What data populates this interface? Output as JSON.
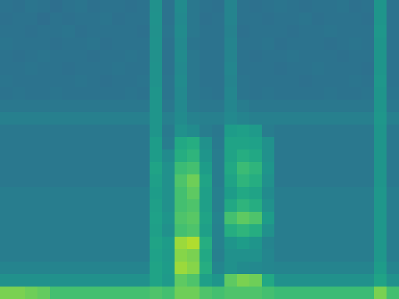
{
  "chart_data": {
    "type": "heatmap",
    "tick_labels": false,
    "zlim": [
      0,
      1
    ],
    "cells": [
      [
        0.38,
        0.37,
        0.39,
        0.38,
        0.36,
        0.38,
        0.39,
        0.37,
        0.38,
        0.38,
        0.37,
        0.38,
        0.5,
        0.38,
        0.48,
        0.4,
        0.38,
        0.37,
        0.45,
        0.38,
        0.37,
        0.38,
        0.39,
        0.38,
        0.37,
        0.38,
        0.38,
        0.39,
        0.37,
        0.38,
        0.52,
        0.38
      ],
      [
        0.37,
        0.38,
        0.38,
        0.36,
        0.38,
        0.37,
        0.38,
        0.38,
        0.39,
        0.37,
        0.38,
        0.38,
        0.51,
        0.38,
        0.47,
        0.4,
        0.37,
        0.38,
        0.45,
        0.38,
        0.38,
        0.37,
        0.38,
        0.38,
        0.39,
        0.37,
        0.38,
        0.38,
        0.38,
        0.37,
        0.52,
        0.38
      ],
      [
        0.38,
        0.38,
        0.37,
        0.38,
        0.38,
        0.39,
        0.37,
        0.38,
        0.38,
        0.38,
        0.38,
        0.37,
        0.5,
        0.39,
        0.48,
        0.4,
        0.38,
        0.38,
        0.44,
        0.37,
        0.38,
        0.38,
        0.38,
        0.37,
        0.38,
        0.38,
        0.39,
        0.38,
        0.38,
        0.38,
        0.53,
        0.38
      ],
      [
        0.39,
        0.38,
        0.38,
        0.38,
        0.37,
        0.38,
        0.38,
        0.39,
        0.37,
        0.38,
        0.38,
        0.38,
        0.51,
        0.38,
        0.47,
        0.39,
        0.38,
        0.38,
        0.45,
        0.38,
        0.38,
        0.39,
        0.37,
        0.38,
        0.38,
        0.38,
        0.37,
        0.38,
        0.39,
        0.38,
        0.52,
        0.38
      ],
      [
        0.38,
        0.37,
        0.38,
        0.39,
        0.38,
        0.38,
        0.38,
        0.37,
        0.38,
        0.38,
        0.39,
        0.38,
        0.5,
        0.38,
        0.48,
        0.4,
        0.38,
        0.38,
        0.45,
        0.38,
        0.37,
        0.38,
        0.38,
        0.39,
        0.38,
        0.38,
        0.38,
        0.37,
        0.38,
        0.38,
        0.52,
        0.38
      ],
      [
        0.38,
        0.38,
        0.39,
        0.38,
        0.38,
        0.37,
        0.38,
        0.38,
        0.38,
        0.39,
        0.38,
        0.38,
        0.51,
        0.38,
        0.47,
        0.4,
        0.38,
        0.38,
        0.46,
        0.38,
        0.38,
        0.38,
        0.37,
        0.38,
        0.38,
        0.39,
        0.38,
        0.38,
        0.38,
        0.37,
        0.52,
        0.38
      ],
      [
        0.39,
        0.38,
        0.38,
        0.38,
        0.38,
        0.38,
        0.39,
        0.38,
        0.37,
        0.38,
        0.38,
        0.39,
        0.51,
        0.39,
        0.48,
        0.4,
        0.38,
        0.38,
        0.45,
        0.39,
        0.38,
        0.38,
        0.38,
        0.38,
        0.37,
        0.38,
        0.38,
        0.38,
        0.39,
        0.38,
        0.53,
        0.38
      ],
      [
        0.38,
        0.39,
        0.38,
        0.38,
        0.39,
        0.38,
        0.38,
        0.38,
        0.38,
        0.38,
        0.39,
        0.38,
        0.52,
        0.39,
        0.47,
        0.4,
        0.39,
        0.38,
        0.46,
        0.39,
        0.38,
        0.39,
        0.38,
        0.38,
        0.38,
        0.38,
        0.39,
        0.38,
        0.38,
        0.39,
        0.52,
        0.39
      ],
      [
        0.4,
        0.4,
        0.4,
        0.4,
        0.4,
        0.4,
        0.4,
        0.4,
        0.4,
        0.4,
        0.4,
        0.4,
        0.52,
        0.4,
        0.47,
        0.41,
        0.4,
        0.4,
        0.46,
        0.42,
        0.4,
        0.4,
        0.4,
        0.4,
        0.4,
        0.4,
        0.4,
        0.4,
        0.4,
        0.4,
        0.52,
        0.4
      ],
      [
        0.43,
        0.43,
        0.43,
        0.43,
        0.43,
        0.43,
        0.43,
        0.43,
        0.43,
        0.43,
        0.43,
        0.43,
        0.52,
        0.43,
        0.48,
        0.44,
        0.43,
        0.43,
        0.47,
        0.45,
        0.43,
        0.43,
        0.43,
        0.43,
        0.43,
        0.43,
        0.43,
        0.43,
        0.43,
        0.43,
        0.53,
        0.43
      ],
      [
        0.4,
        0.4,
        0.4,
        0.4,
        0.4,
        0.4,
        0.4,
        0.4,
        0.4,
        0.4,
        0.4,
        0.4,
        0.52,
        0.41,
        0.5,
        0.48,
        0.42,
        0.4,
        0.55,
        0.56,
        0.54,
        0.42,
        0.4,
        0.4,
        0.4,
        0.4,
        0.4,
        0.4,
        0.4,
        0.4,
        0.52,
        0.4
      ],
      [
        0.4,
        0.4,
        0.4,
        0.4,
        0.4,
        0.4,
        0.4,
        0.4,
        0.4,
        0.4,
        0.4,
        0.4,
        0.55,
        0.42,
        0.6,
        0.62,
        0.5,
        0.41,
        0.58,
        0.58,
        0.57,
        0.5,
        0.4,
        0.4,
        0.4,
        0.4,
        0.4,
        0.4,
        0.4,
        0.4,
        0.52,
        0.4
      ],
      [
        0.4,
        0.4,
        0.4,
        0.4,
        0.4,
        0.4,
        0.4,
        0.4,
        0.4,
        0.4,
        0.4,
        0.4,
        0.55,
        0.48,
        0.62,
        0.65,
        0.52,
        0.42,
        0.58,
        0.62,
        0.6,
        0.5,
        0.4,
        0.4,
        0.4,
        0.4,
        0.4,
        0.4,
        0.4,
        0.4,
        0.52,
        0.4
      ],
      [
        0.4,
        0.4,
        0.4,
        0.4,
        0.4,
        0.4,
        0.4,
        0.4,
        0.4,
        0.4,
        0.4,
        0.4,
        0.58,
        0.5,
        0.68,
        0.7,
        0.55,
        0.42,
        0.6,
        0.68,
        0.65,
        0.52,
        0.4,
        0.4,
        0.4,
        0.4,
        0.4,
        0.4,
        0.4,
        0.4,
        0.52,
        0.4
      ],
      [
        0.4,
        0.4,
        0.4,
        0.4,
        0.4,
        0.4,
        0.4,
        0.4,
        0.4,
        0.4,
        0.4,
        0.4,
        0.56,
        0.5,
        0.72,
        0.78,
        0.58,
        0.42,
        0.58,
        0.65,
        0.62,
        0.5,
        0.4,
        0.4,
        0.4,
        0.4,
        0.4,
        0.4,
        0.4,
        0.4,
        0.52,
        0.4
      ],
      [
        0.42,
        0.42,
        0.42,
        0.42,
        0.42,
        0.42,
        0.42,
        0.42,
        0.42,
        0.42,
        0.42,
        0.42,
        0.55,
        0.5,
        0.7,
        0.75,
        0.56,
        0.43,
        0.55,
        0.6,
        0.58,
        0.48,
        0.42,
        0.42,
        0.42,
        0.42,
        0.42,
        0.42,
        0.42,
        0.42,
        0.53,
        0.42
      ],
      [
        0.42,
        0.42,
        0.42,
        0.42,
        0.42,
        0.42,
        0.42,
        0.42,
        0.42,
        0.42,
        0.42,
        0.42,
        0.56,
        0.5,
        0.7,
        0.72,
        0.56,
        0.43,
        0.6,
        0.65,
        0.62,
        0.5,
        0.42,
        0.42,
        0.42,
        0.42,
        0.42,
        0.42,
        0.42,
        0.42,
        0.53,
        0.42
      ],
      [
        0.42,
        0.42,
        0.42,
        0.42,
        0.42,
        0.42,
        0.42,
        0.42,
        0.42,
        0.42,
        0.42,
        0.42,
        0.57,
        0.52,
        0.72,
        0.74,
        0.58,
        0.45,
        0.7,
        0.75,
        0.72,
        0.55,
        0.42,
        0.42,
        0.42,
        0.42,
        0.42,
        0.42,
        0.42,
        0.42,
        0.53,
        0.42
      ],
      [
        0.42,
        0.42,
        0.42,
        0.42,
        0.42,
        0.42,
        0.42,
        0.42,
        0.42,
        0.42,
        0.42,
        0.42,
        0.56,
        0.5,
        0.7,
        0.72,
        0.56,
        0.44,
        0.62,
        0.65,
        0.62,
        0.5,
        0.42,
        0.42,
        0.42,
        0.42,
        0.42,
        0.42,
        0.42,
        0.42,
        0.53,
        0.42
      ],
      [
        0.42,
        0.42,
        0.42,
        0.42,
        0.42,
        0.42,
        0.42,
        0.42,
        0.42,
        0.42,
        0.42,
        0.42,
        0.58,
        0.55,
        0.85,
        0.88,
        0.62,
        0.44,
        0.52,
        0.55,
        0.52,
        0.45,
        0.42,
        0.42,
        0.42,
        0.42,
        0.42,
        0.42,
        0.42,
        0.42,
        0.53,
        0.42
      ],
      [
        0.42,
        0.42,
        0.42,
        0.42,
        0.42,
        0.42,
        0.42,
        0.42,
        0.42,
        0.42,
        0.42,
        0.42,
        0.57,
        0.54,
        0.82,
        0.8,
        0.6,
        0.43,
        0.5,
        0.5,
        0.5,
        0.46,
        0.42,
        0.42,
        0.42,
        0.42,
        0.42,
        0.42,
        0.42,
        0.42,
        0.53,
        0.42
      ],
      [
        0.45,
        0.45,
        0.45,
        0.45,
        0.45,
        0.45,
        0.45,
        0.45,
        0.45,
        0.45,
        0.45,
        0.45,
        0.58,
        0.55,
        0.85,
        0.82,
        0.62,
        0.46,
        0.5,
        0.48,
        0.47,
        0.46,
        0.45,
        0.45,
        0.45,
        0.45,
        0.45,
        0.45,
        0.45,
        0.45,
        0.55,
        0.45
      ],
      [
        0.5,
        0.5,
        0.5,
        0.5,
        0.5,
        0.5,
        0.5,
        0.5,
        0.5,
        0.5,
        0.5,
        0.5,
        0.58,
        0.54,
        0.75,
        0.72,
        0.56,
        0.52,
        0.75,
        0.8,
        0.78,
        0.6,
        0.5,
        0.5,
        0.5,
        0.5,
        0.5,
        0.5,
        0.5,
        0.5,
        0.58,
        0.5
      ],
      [
        0.8,
        0.8,
        0.78,
        0.76,
        0.7,
        0.7,
        0.7,
        0.7,
        0.7,
        0.7,
        0.7,
        0.7,
        0.72,
        0.7,
        0.78,
        0.78,
        0.72,
        0.7,
        0.72,
        0.72,
        0.72,
        0.7,
        0.68,
        0.68,
        0.68,
        0.68,
        0.68,
        0.68,
        0.68,
        0.68,
        0.8,
        0.7
      ]
    ]
  }
}
